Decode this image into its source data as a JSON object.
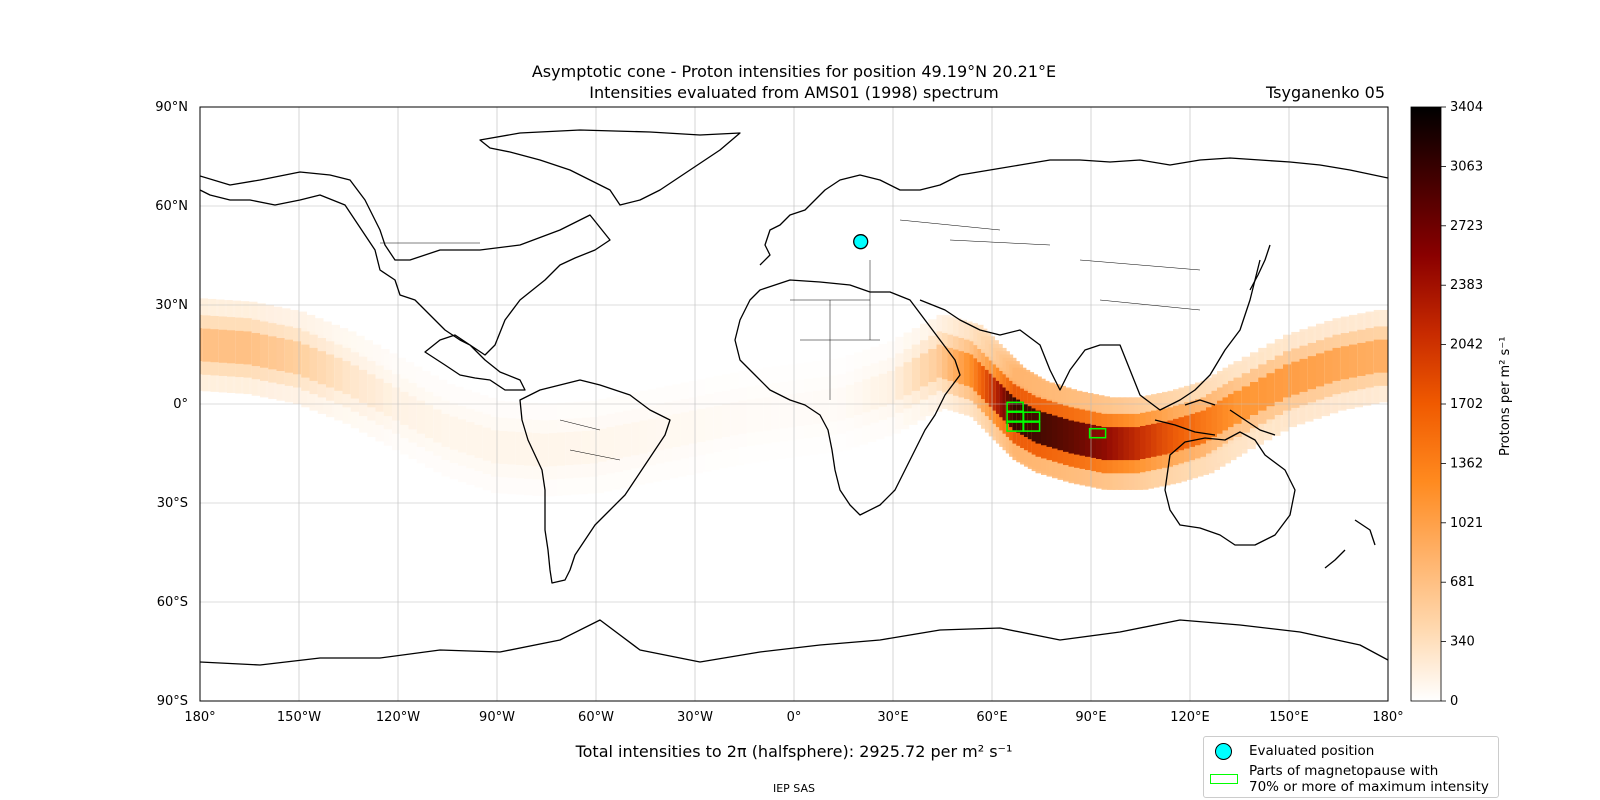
{
  "title": {
    "line1": "Asymptotic cone - Proton intensities for position 49.19°N 20.21°E",
    "line2": "Intensities evaluated from AMS01 (1998) spectrum",
    "model": "Tsyganenko 05"
  },
  "axes": {
    "lat_ticks": [
      "90°N",
      "60°N",
      "30°N",
      "0°",
      "30°S",
      "60°S",
      "90°S"
    ],
    "lon_ticks": [
      "180°",
      "150°W",
      "120°W",
      "90°W",
      "60°W",
      "30°W",
      "0°",
      "30°E",
      "60°E",
      "90°E",
      "120°E",
      "150°E",
      "180°"
    ]
  },
  "colorbar": {
    "label": "Protons per m² s⁻¹",
    "ticks": [
      "3404",
      "3063",
      "2723",
      "2383",
      "2042",
      "1702",
      "1362",
      "1021",
      "681",
      "340",
      "0"
    ]
  },
  "total": "Total intensities to 2π (halfsphere): 2925.72 per m² s⁻¹",
  "credit": "IEP SAS",
  "legend": {
    "evaluated": "Evaluated position",
    "magnetopause_line1": "Parts of magnetopause with",
    "magnetopause_line2": "70% or more of maximum intensity"
  },
  "colors": {
    "evaluated_position": "#00ffff",
    "magnetopause_outline": "#00ff00",
    "colormap": "gist_heat_r"
  },
  "map_data": {
    "evaluated_position": {
      "lat": 49.19,
      "lon": 20.21
    },
    "max_intensity_cells": [
      {
        "lat": -1,
        "lon": 67
      },
      {
        "lat": -4,
        "lon": 67
      },
      {
        "lat": -7,
        "lon": 67
      },
      {
        "lat": -4,
        "lon": 72
      },
      {
        "lat": -7,
        "lon": 72
      },
      {
        "lat": -9,
        "lon": 92
      }
    ],
    "intensity_band": [
      {
        "lon": -180,
        "lat": 18,
        "v": 700
      },
      {
        "lon": -165,
        "lat": 17,
        "v": 700
      },
      {
        "lon": -150,
        "lat": 14,
        "v": 550
      },
      {
        "lon": -135,
        "lat": 8,
        "v": 300
      },
      {
        "lon": -120,
        "lat": 0,
        "v": 150
      },
      {
        "lon": -105,
        "lat": -8,
        "v": 110
      },
      {
        "lon": -90,
        "lat": -13,
        "v": 110
      },
      {
        "lon": -75,
        "lat": -14,
        "v": 110
      },
      {
        "lon": -60,
        "lat": -13,
        "v": 100
      },
      {
        "lon": -45,
        "lat": -10,
        "v": 90
      },
      {
        "lon": -30,
        "lat": -7,
        "v": 70
      },
      {
        "lon": -15,
        "lat": -4,
        "v": 50
      },
      {
        "lon": 0,
        "lat": -2,
        "v": 40
      },
      {
        "lon": 15,
        "lat": 0,
        "v": 50
      },
      {
        "lon": 30,
        "lat": 5,
        "v": 150
      },
      {
        "lon": 45,
        "lat": 13,
        "v": 600
      },
      {
        "lon": 55,
        "lat": 10,
        "v": 1300
      },
      {
        "lon": 62,
        "lat": 3,
        "v": 2200
      },
      {
        "lon": 68,
        "lat": -3,
        "v": 3200
      },
      {
        "lon": 75,
        "lat": -7,
        "v": 3100
      },
      {
        "lon": 85,
        "lat": -10,
        "v": 2900
      },
      {
        "lon": 95,
        "lat": -12,
        "v": 2600
      },
      {
        "lon": 105,
        "lat": -12,
        "v": 2200
      },
      {
        "lon": 115,
        "lat": -10,
        "v": 1800
      },
      {
        "lon": 125,
        "lat": -7,
        "v": 1500
      },
      {
        "lon": 135,
        "lat": -1,
        "v": 1200
      },
      {
        "lon": 150,
        "lat": 7,
        "v": 1100
      },
      {
        "lon": 165,
        "lat": 12,
        "v": 1000
      },
      {
        "lon": 180,
        "lat": 15,
        "v": 900
      }
    ]
  }
}
